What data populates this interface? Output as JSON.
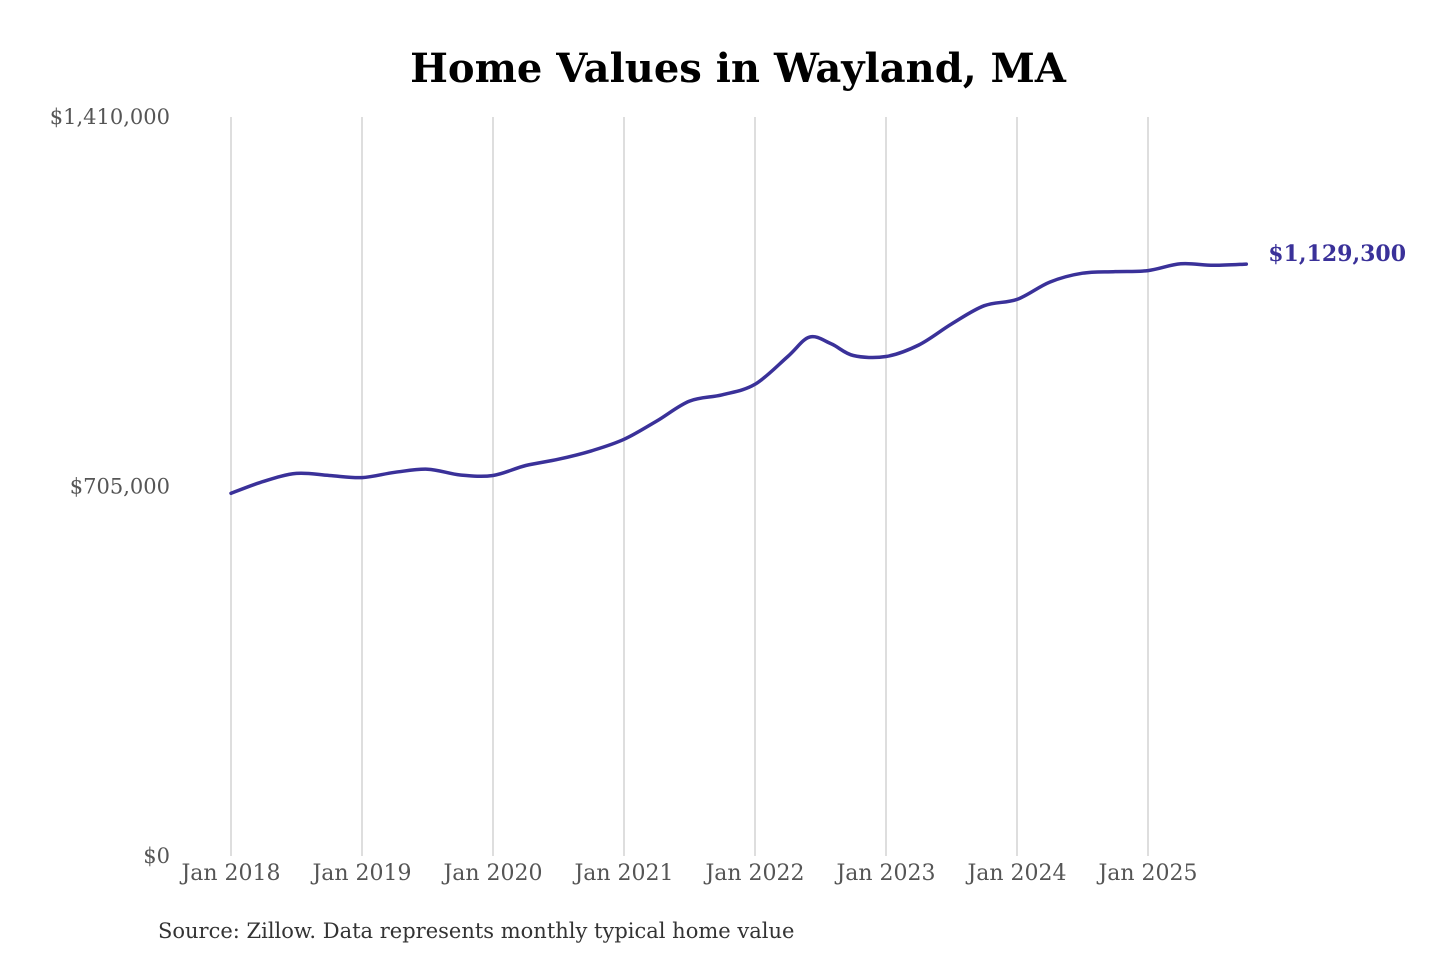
{
  "chart_data": {
    "type": "line",
    "title": "Home Values in Wayland, MA",
    "source_note": "Source: Zillow. Data represents monthly typical home value",
    "ylim": [
      0,
      1410000
    ],
    "y_ticks": [
      {
        "value": 1410000,
        "label": "$1,410,000"
      },
      {
        "value": 705000,
        "label": "$705,000"
      },
      {
        "value": 0,
        "label": "$0"
      }
    ],
    "x_ticks": [
      {
        "date": "2018-01",
        "label": "Jan 2018"
      },
      {
        "date": "2019-01",
        "label": "Jan 2019"
      },
      {
        "date": "2020-01",
        "label": "Jan 2020"
      },
      {
        "date": "2021-01",
        "label": "Jan 2021"
      },
      {
        "date": "2022-01",
        "label": "Jan 2022"
      },
      {
        "date": "2023-01",
        "label": "Jan 2023"
      },
      {
        "date": "2024-01",
        "label": "Jan 2024"
      },
      {
        "date": "2025-01",
        "label": "Jan 2025"
      }
    ],
    "xlim": [
      "2018-01",
      "2025-10"
    ],
    "grid": "vertical",
    "color": "#3a3199",
    "end_label": "$1,129,300",
    "series": [
      {
        "points": [
          {
            "date": "2018-01",
            "value": 692000
          },
          {
            "date": "2018-04",
            "value": 715000
          },
          {
            "date": "2018-07",
            "value": 730000
          },
          {
            "date": "2018-10",
            "value": 726000
          },
          {
            "date": "2019-01",
            "value": 722000
          },
          {
            "date": "2019-04",
            "value": 732000
          },
          {
            "date": "2019-07",
            "value": 738000
          },
          {
            "date": "2019-10",
            "value": 727000
          },
          {
            "date": "2020-01",
            "value": 726000
          },
          {
            "date": "2020-04",
            "value": 745000
          },
          {
            "date": "2020-07",
            "value": 757000
          },
          {
            "date": "2020-10",
            "value": 773000
          },
          {
            "date": "2021-01",
            "value": 795000
          },
          {
            "date": "2021-04",
            "value": 830000
          },
          {
            "date": "2021-07",
            "value": 868000
          },
          {
            "date": "2021-10",
            "value": 880000
          },
          {
            "date": "2022-01",
            "value": 900000
          },
          {
            "date": "2022-04",
            "value": 953000
          },
          {
            "date": "2022-06",
            "value": 990000
          },
          {
            "date": "2022-08",
            "value": 977000
          },
          {
            "date": "2022-10",
            "value": 955000
          },
          {
            "date": "2023-01",
            "value": 953000
          },
          {
            "date": "2023-04",
            "value": 975000
          },
          {
            "date": "2023-07",
            "value": 1015000
          },
          {
            "date": "2023-10",
            "value": 1050000
          },
          {
            "date": "2024-01",
            "value": 1062000
          },
          {
            "date": "2024-04",
            "value": 1095000
          },
          {
            "date": "2024-07",
            "value": 1112000
          },
          {
            "date": "2024-10",
            "value": 1115000
          },
          {
            "date": "2025-01",
            "value": 1117000
          },
          {
            "date": "2025-04",
            "value": 1130000
          },
          {
            "date": "2025-07",
            "value": 1127000
          },
          {
            "date": "2025-10",
            "value": 1129300
          }
        ]
      }
    ]
  }
}
